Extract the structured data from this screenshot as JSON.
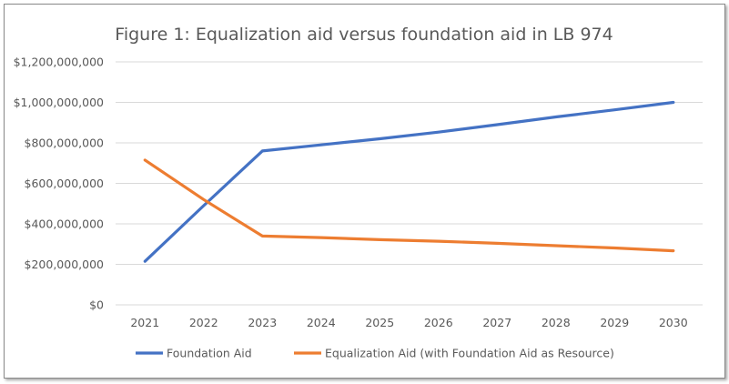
{
  "chart_data": {
    "type": "line",
    "title": "Figure 1: Equalization aid versus foundation aid in LB 974",
    "xlabel": "",
    "ylabel": "",
    "categories": [
      "2021",
      "2022",
      "2023",
      "2024",
      "2025",
      "2026",
      "2027",
      "2028",
      "2029",
      "2030"
    ],
    "ylim": [
      0,
      1200000000
    ],
    "yticks": [
      0,
      200000000,
      400000000,
      600000000,
      800000000,
      1000000000,
      1200000000
    ],
    "ytick_labels": [
      "$0",
      "$200,000,000",
      "$400,000,000",
      "$600,000,000",
      "$800,000,000",
      "$1,000,000,000",
      "$1,200,000,000"
    ],
    "grid": true,
    "legend_position": "bottom",
    "series": [
      {
        "name": "Foundation Aid",
        "color": "#4472c4",
        "values": [
          215000000,
          490000000,
          760000000,
          790000000,
          820000000,
          853000000,
          890000000,
          928000000,
          963000000,
          1000000000
        ]
      },
      {
        "name": "Equalization Aid (with Foundation Aid as Resource)",
        "color": "#ed7d31",
        "values": [
          715000000,
          520000000,
          340000000,
          332000000,
          322000000,
          314000000,
          304000000,
          292000000,
          281000000,
          267000000
        ]
      }
    ]
  }
}
